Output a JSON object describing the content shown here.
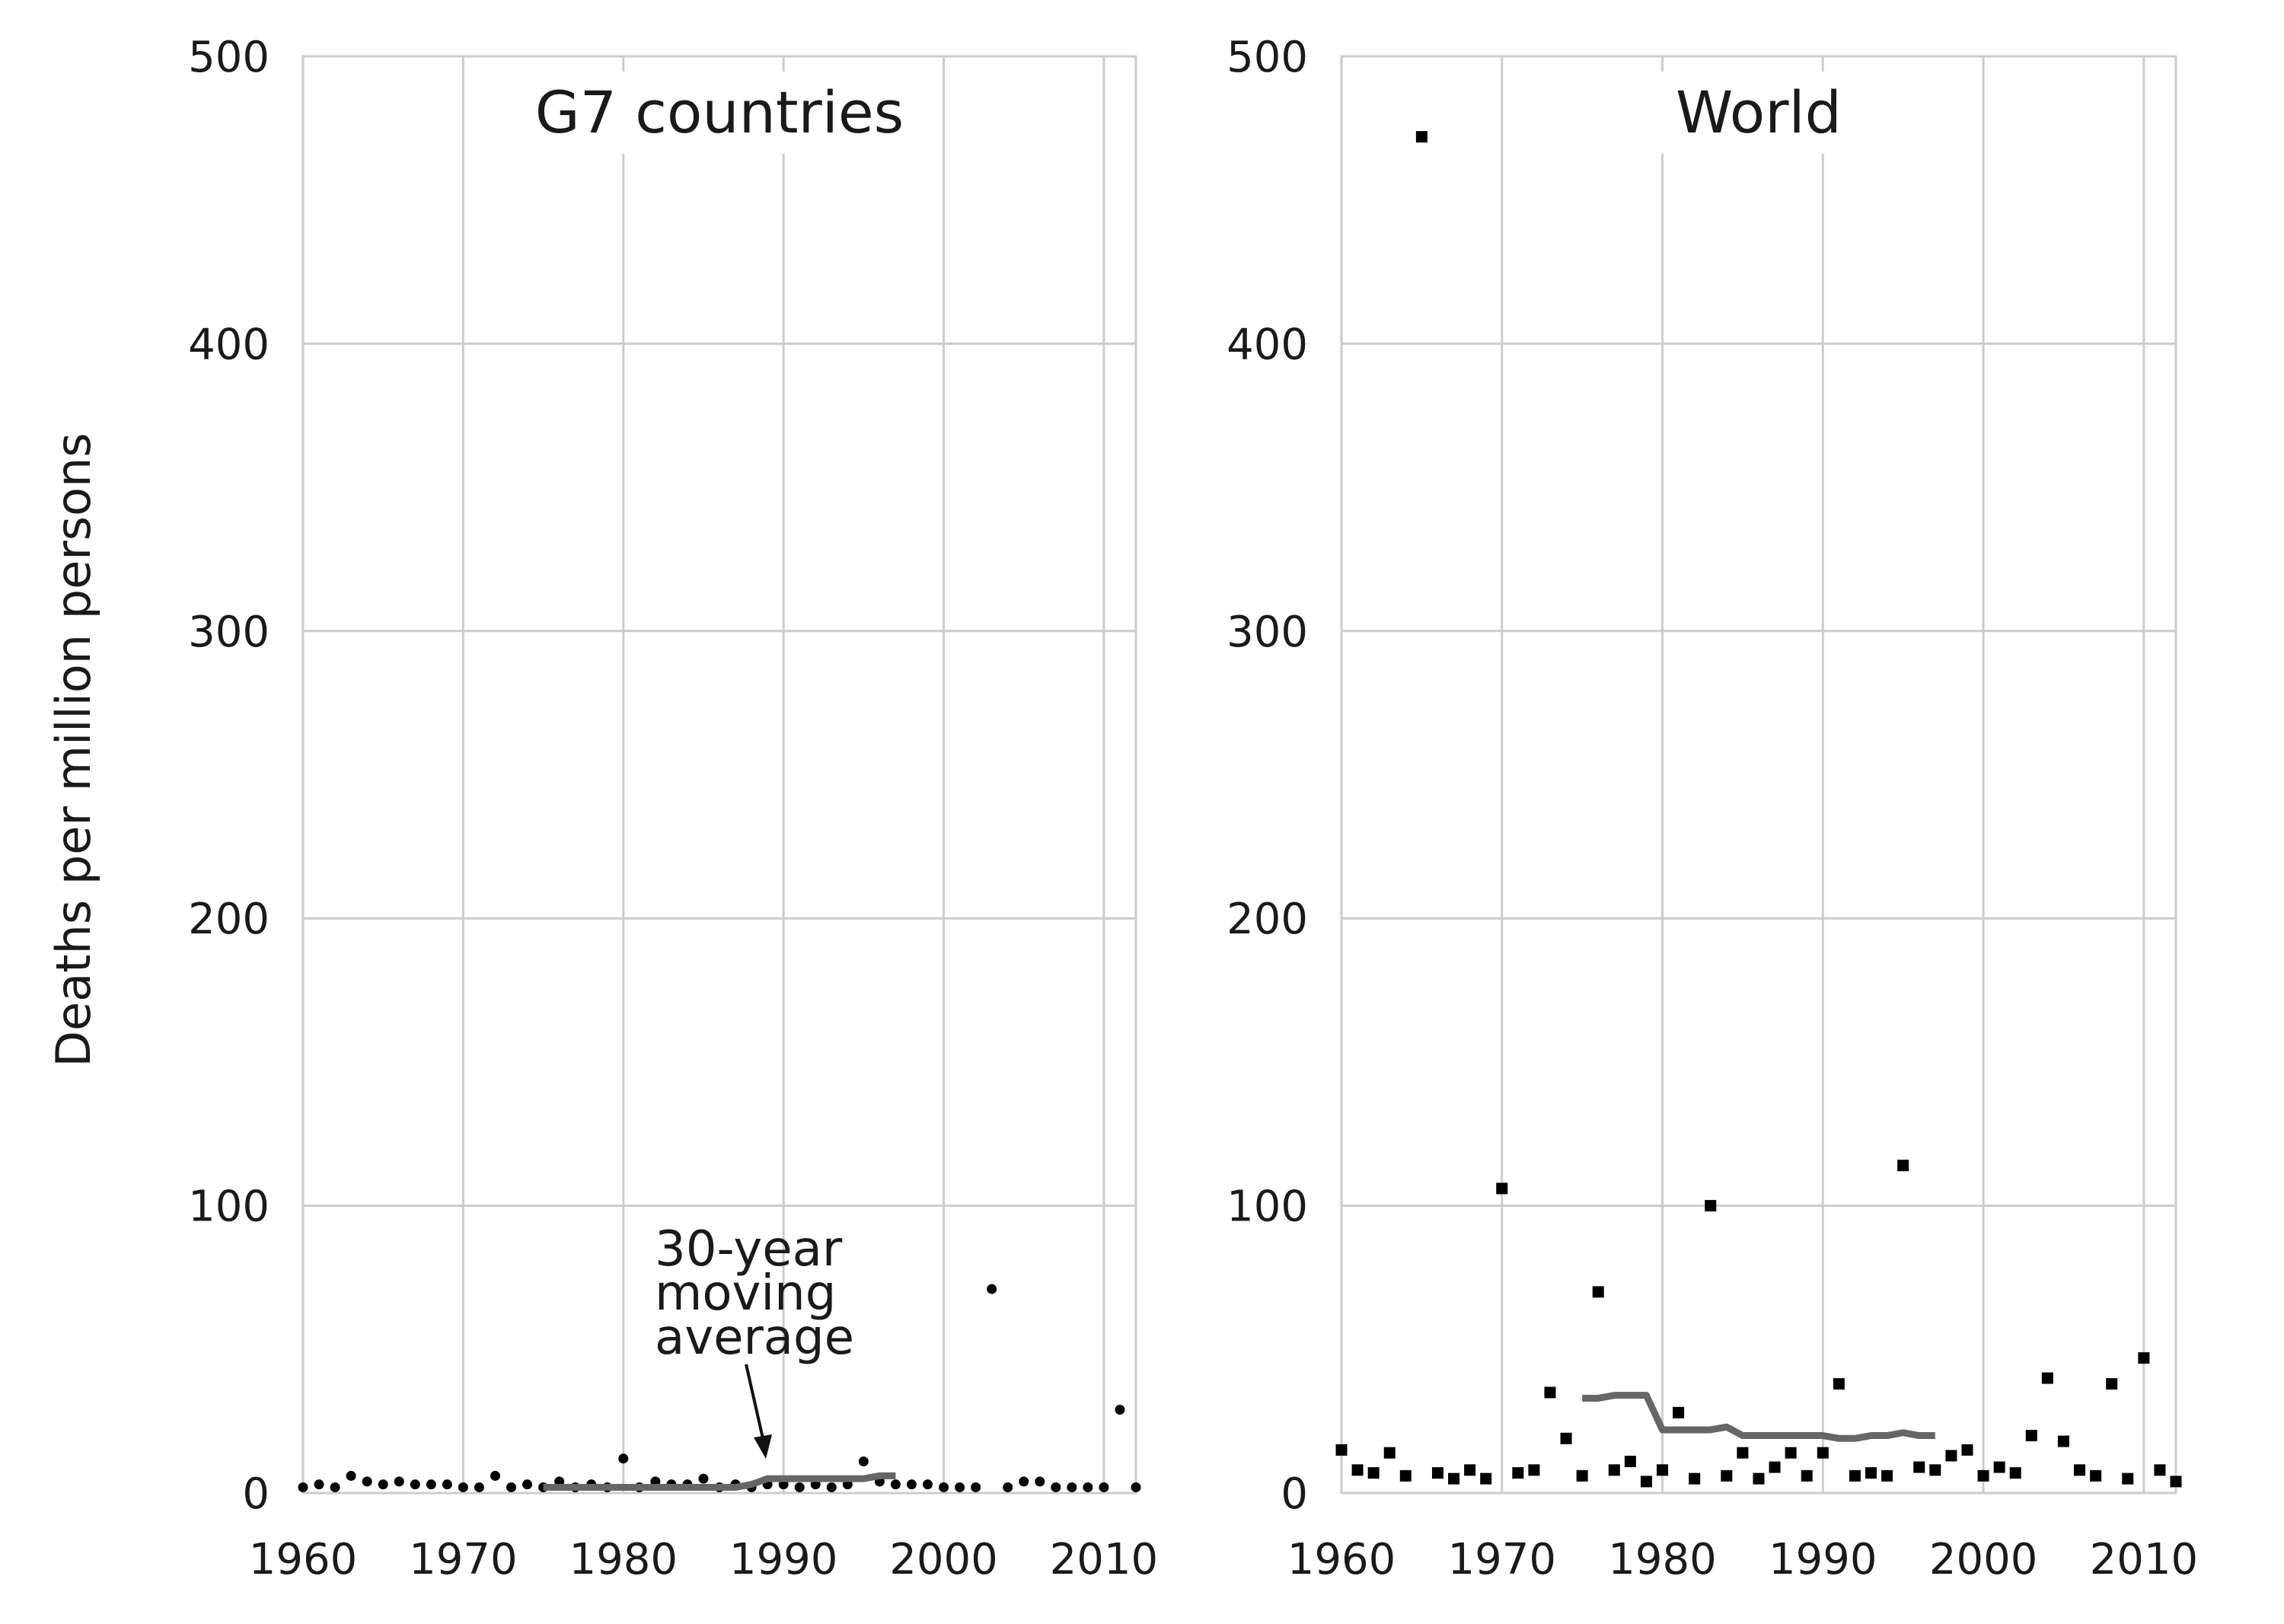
{
  "ylabel": "Deaths per million persons",
  "annotation": [
    "30-year",
    "moving",
    "average"
  ],
  "chart_data": [
    {
      "type": "scatter",
      "title": "G7 countries",
      "xlabel": "",
      "ylabel": "Deaths per million persons",
      "xlim": [
        1960,
        2012
      ],
      "ylim": [
        0,
        500
      ],
      "xticks": [
        "1960",
        "1970",
        "1980",
        "1990",
        "2000",
        "2010"
      ],
      "yticks": [
        "0",
        "100",
        "200",
        "300",
        "400",
        "500"
      ],
      "grid": true,
      "marker": "circle",
      "series": [
        {
          "x": [
            1960,
            1961,
            1962,
            1963,
            1964,
            1965,
            1966,
            1967,
            1968,
            1969,
            1970,
            1971,
            1972,
            1973,
            1974,
            1975,
            1976,
            1977,
            1978,
            1979,
            1980,
            1981,
            1982,
            1983,
            1984,
            1985,
            1986,
            1987,
            1988,
            1989,
            1990,
            1991,
            1992,
            1993,
            1994,
            1995,
            1996,
            1997,
            1998,
            1999,
            2000,
            2001,
            2002,
            2003,
            2004,
            2005,
            2006,
            2007,
            2008,
            2009,
            2010,
            2011,
            2012
          ],
          "y": [
            2,
            3,
            2,
            6,
            4,
            3,
            4,
            3,
            3,
            3,
            2,
            2,
            6,
            2,
            3,
            2,
            4,
            2,
            3,
            2,
            12,
            2,
            4,
            3,
            3,
            5,
            2,
            3,
            2,
            3,
            3,
            2,
            3,
            2,
            3,
            11,
            4,
            3,
            3,
            3,
            2,
            2,
            2,
            71,
            2,
            4,
            4,
            2,
            2,
            2,
            2,
            29,
            2
          ]
        },
        {
          "type": "line",
          "x": [
            1975,
            1976,
            1977,
            1978,
            1979,
            1980,
            1981,
            1982,
            1983,
            1984,
            1985,
            1986,
            1987,
            1988,
            1989,
            1990,
            1991,
            1992,
            1993,
            1994,
            1995,
            1996,
            1997
          ],
          "y": [
            2,
            2,
            2,
            2,
            2,
            2,
            2,
            2,
            2,
            2,
            2,
            2,
            2,
            3,
            5,
            5,
            5,
            5,
            5,
            5,
            5,
            6,
            6
          ]
        }
      ]
    },
    {
      "type": "scatter",
      "title": "World",
      "xlabel": "",
      "ylabel": "",
      "xlim": [
        1960,
        2012
      ],
      "ylim": [
        0,
        500
      ],
      "xticks": [
        "1960",
        "1970",
        "1980",
        "1990",
        "2000",
        "2010"
      ],
      "yticks": [
        "0",
        "100",
        "200",
        "300",
        "400",
        "500"
      ],
      "grid": true,
      "marker": "square",
      "series": [
        {
          "x": [
            1960,
            1961,
            1962,
            1963,
            1964,
            1965,
            1966,
            1967,
            1968,
            1969,
            1970,
            1971,
            1972,
            1973,
            1974,
            1975,
            1976,
            1977,
            1978,
            1979,
            1980,
            1981,
            1982,
            1983,
            1984,
            1985,
            1986,
            1987,
            1988,
            1989,
            1990,
            1991,
            1992,
            1993,
            1994,
            1995,
            1996,
            1997,
            1998,
            1999,
            2000,
            2001,
            2002,
            2003,
            2004,
            2005,
            2006,
            2007,
            2008,
            2009,
            2010,
            2011,
            2012
          ],
          "y": [
            15,
            8,
            7,
            14,
            6,
            472,
            7,
            5,
            8,
            5,
            106,
            7,
            8,
            35,
            19,
            6,
            70,
            8,
            11,
            4,
            8,
            28,
            5,
            100,
            6,
            14,
            5,
            9,
            14,
            6,
            14,
            38,
            6,
            7,
            6,
            114,
            9,
            8,
            13,
            15,
            6,
            9,
            7,
            20,
            40,
            18,
            8,
            6,
            38,
            5,
            47,
            8,
            4
          ]
        },
        {
          "type": "line",
          "x": [
            1975,
            1976,
            1977,
            1978,
            1979,
            1980,
            1981,
            1982,
            1983,
            1984,
            1985,
            1986,
            1987,
            1988,
            1989,
            1990,
            1991,
            1992,
            1993,
            1994,
            1995,
            1996,
            1997
          ],
          "y": [
            33,
            33,
            34,
            34,
            34,
            22,
            22,
            22,
            22,
            23,
            20,
            20,
            20,
            20,
            20,
            20,
            19,
            19,
            20,
            20,
            21,
            20,
            20
          ]
        }
      ]
    }
  ]
}
